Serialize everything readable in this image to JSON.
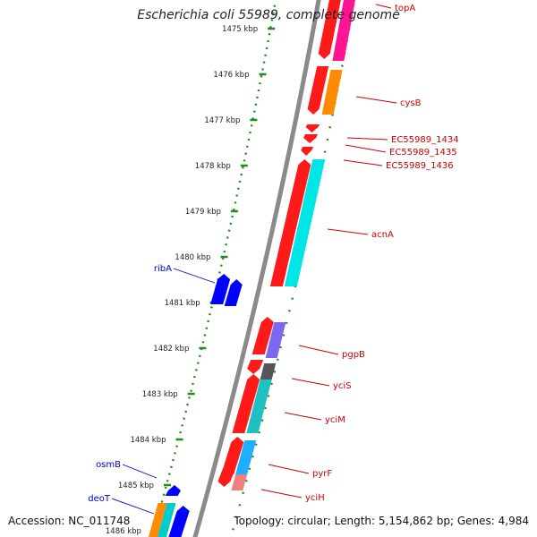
{
  "title": "Escherichia coli 55989, complete genome",
  "footer": {
    "accession": "Accession: NC_011748",
    "summary": "Topology: circular; Length: 5,154,862 bp; Genes: 4,984"
  },
  "colors": {
    "backbone": "#8a8a8a",
    "ruler": "#1e8c1e",
    "label_forward": "#cc0000",
    "label_reverse": "#0000cc"
  },
  "ruler_ticks": [
    {
      "label": "1475 kbp"
    },
    {
      "label": "1476 kbp"
    },
    {
      "label": "1477 kbp"
    },
    {
      "label": "1478 kbp"
    },
    {
      "label": "1479 kbp"
    },
    {
      "label": "1480 kbp"
    },
    {
      "label": "1481 kbp"
    },
    {
      "label": "1482 kbp"
    },
    {
      "label": "1483 kbp"
    },
    {
      "label": "1484 kbp"
    },
    {
      "label": "1485 kbp"
    },
    {
      "label": "1486 kbp"
    }
  ],
  "gene_labels": [
    {
      "name": "topA",
      "strand": "forward"
    },
    {
      "name": "cysB",
      "strand": "forward"
    },
    {
      "name": "EC55989_1434",
      "strand": "forward"
    },
    {
      "name": "EC55989_1435",
      "strand": "forward"
    },
    {
      "name": "EC55989_1436",
      "strand": "forward"
    },
    {
      "name": "acnA",
      "strand": "forward"
    },
    {
      "name": "ribA",
      "strand": "reverse"
    },
    {
      "name": "pgpB",
      "strand": "forward"
    },
    {
      "name": "yciS",
      "strand": "forward"
    },
    {
      "name": "yciM",
      "strand": "forward"
    },
    {
      "name": "osmB",
      "strand": "reverse"
    },
    {
      "name": "pyrF",
      "strand": "forward"
    },
    {
      "name": "deoT",
      "strand": "reverse"
    },
    {
      "name": "yciH",
      "strand": "forward"
    }
  ]
}
